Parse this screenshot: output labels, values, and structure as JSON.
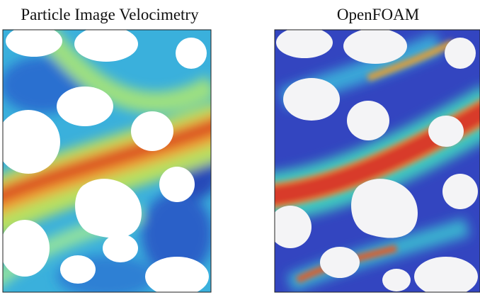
{
  "panels": [
    {
      "title": "Particle Image Velocimetry"
    },
    {
      "title": "OpenFOAM"
    }
  ]
}
